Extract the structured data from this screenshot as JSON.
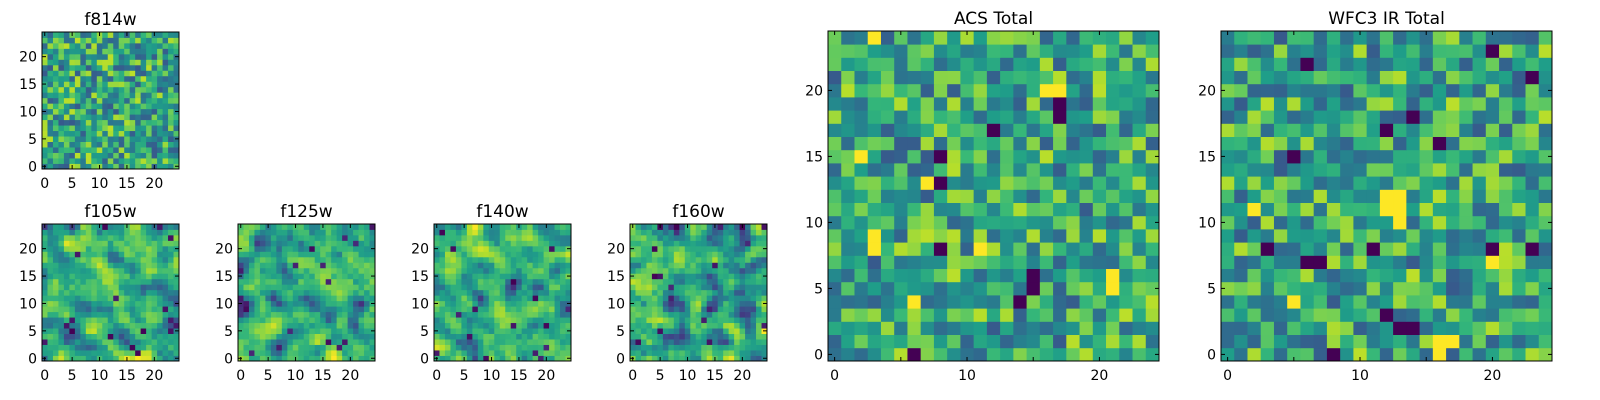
{
  "chart_data": [
    {
      "type": "heatmap",
      "title": "f814w",
      "size": 25,
      "xlim": [
        -0.5,
        24.5
      ],
      "ylim": [
        -0.5,
        24.5
      ],
      "xticks": [
        0,
        5,
        10,
        15,
        20
      ],
      "yticks": [
        0,
        5,
        10,
        15,
        20
      ],
      "colormap": "viridis",
      "pattern": "uncorrelated pixel noise",
      "seed": 814
    },
    {
      "type": "heatmap",
      "title": "f105w",
      "size": 25,
      "xlim": [
        -0.5,
        24.5
      ],
      "ylim": [
        -0.5,
        24.5
      ],
      "xticks": [
        0,
        5,
        10,
        15,
        20
      ],
      "yticks": [
        0,
        5,
        10,
        15,
        20
      ],
      "colormap": "viridis",
      "pattern": "smoothed noise",
      "seed": 105
    },
    {
      "type": "heatmap",
      "title": "f125w",
      "size": 25,
      "xlim": [
        -0.5,
        24.5
      ],
      "ylim": [
        -0.5,
        24.5
      ],
      "xticks": [
        0,
        5,
        10,
        15,
        20
      ],
      "yticks": [
        0,
        5,
        10,
        15,
        20
      ],
      "colormap": "viridis",
      "pattern": "smoothed noise",
      "seed": 125
    },
    {
      "type": "heatmap",
      "title": "f140w",
      "size": 25,
      "xlim": [
        -0.5,
        24.5
      ],
      "ylim": [
        -0.5,
        24.5
      ],
      "xticks": [
        0,
        5,
        10,
        15,
        20
      ],
      "yticks": [
        0,
        5,
        10,
        15,
        20
      ],
      "colormap": "viridis",
      "pattern": "smoothed noise",
      "seed": 140
    },
    {
      "type": "heatmap",
      "title": "f160w",
      "size": 25,
      "xlim": [
        -0.5,
        24.5
      ],
      "ylim": [
        -0.5,
        24.5
      ],
      "xticks": [
        0,
        5,
        10,
        15,
        20
      ],
      "yticks": [
        0,
        5,
        10,
        15,
        20
      ],
      "colormap": "viridis",
      "pattern": "smoothed noise",
      "seed": 160
    },
    {
      "type": "heatmap",
      "title": "ACS Total",
      "size": 25,
      "xlim": [
        -0.5,
        24.5
      ],
      "ylim": [
        -0.5,
        24.5
      ],
      "xticks": [
        0,
        10,
        20
      ],
      "xticks_minor": [
        5,
        15
      ],
      "yticks": [
        0,
        5,
        10,
        15,
        20
      ],
      "colormap": "viridis",
      "pattern": "uncorrelated pixel noise",
      "seed": 1001,
      "dark_pixels": [
        [
          17,
          19
        ],
        [
          17,
          18
        ],
        [
          12,
          17
        ],
        [
          8,
          15
        ],
        [
          8,
          13
        ],
        [
          15,
          6
        ],
        [
          15,
          5
        ],
        [
          14,
          4
        ],
        [
          8,
          8
        ],
        [
          6,
          0
        ]
      ],
      "bright_pixels": [
        [
          3,
          8
        ],
        [
          3,
          9
        ],
        [
          21,
          5
        ],
        [
          21,
          6
        ],
        [
          3,
          24
        ],
        [
          16,
          20
        ],
        [
          17,
          20
        ],
        [
          6,
          4
        ],
        [
          7,
          13
        ],
        [
          2,
          15
        ],
        [
          11,
          8
        ]
      ]
    },
    {
      "type": "heatmap",
      "title": "WFC3 IR Total",
      "size": 25,
      "xlim": [
        -0.5,
        24.5
      ],
      "ylim": [
        -0.5,
        24.5
      ],
      "xticks": [
        0,
        10,
        20
      ],
      "xticks_minor": [
        5,
        15
      ],
      "yticks": [
        0,
        5,
        10,
        15,
        20
      ],
      "colormap": "viridis",
      "pattern": "uncorrelated pixel noise",
      "seed": 3003,
      "dark_pixels": [
        [
          20,
          23
        ],
        [
          23,
          21
        ],
        [
          6,
          22
        ],
        [
          14,
          18
        ],
        [
          12,
          17
        ],
        [
          16,
          16
        ],
        [
          5,
          15
        ],
        [
          3,
          8
        ],
        [
          6,
          7
        ],
        [
          7,
          7
        ],
        [
          11,
          8
        ],
        [
          20,
          8
        ],
        [
          23,
          8
        ],
        [
          12,
          3
        ],
        [
          13,
          2
        ],
        [
          14,
          2
        ],
        [
          8,
          0
        ]
      ],
      "bright_pixels": [
        [
          12,
          12
        ],
        [
          13,
          12
        ],
        [
          12,
          11
        ],
        [
          13,
          11
        ],
        [
          13,
          10
        ],
        [
          16,
          1
        ],
        [
          16,
          0
        ],
        [
          17,
          1
        ],
        [
          5,
          4
        ],
        [
          2,
          11
        ],
        [
          20,
          7
        ]
      ]
    }
  ]
}
